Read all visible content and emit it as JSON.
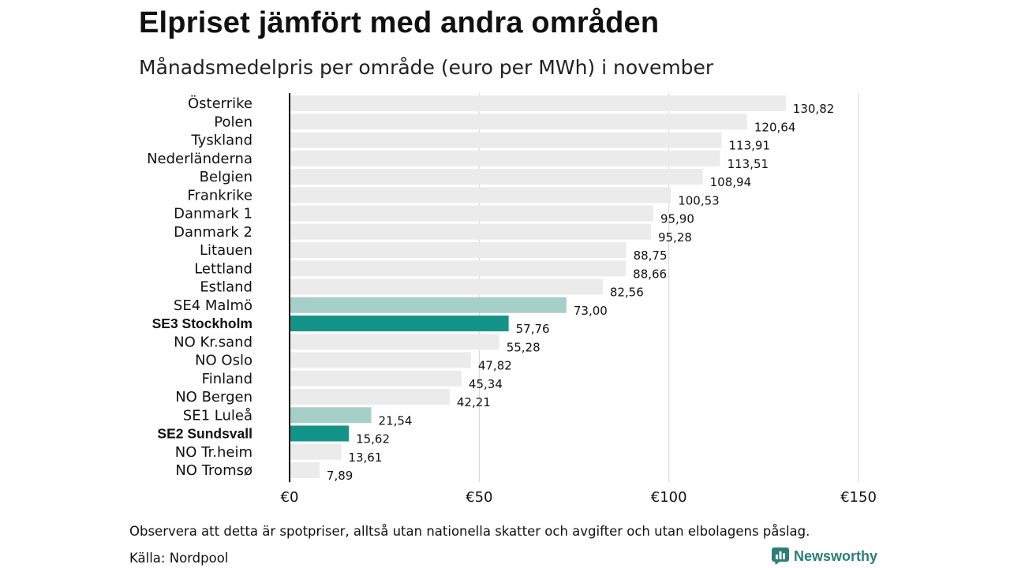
{
  "header": {
    "title": "Elpriset jämfört med andra områden",
    "subtitle": "Månadsmedelpris per område (euro per MWh) i november"
  },
  "footer": {
    "note": "Observera att detta är spotpriser, alltså utan nationella skatter och avgifter och utan elbolagens påslag.",
    "source": "Källa: Nordpool",
    "brand": "Newsworthy"
  },
  "colors": {
    "default_bar": "#ebebeb",
    "highlight_light": "#a6cfc8",
    "highlight_dark": "#149488",
    "axis": "#111111",
    "grid": "#d4d4d4",
    "brand": "#2a7f76"
  },
  "chart_data": {
    "type": "bar",
    "orientation": "horizontal",
    "xlim": [
      0,
      150
    ],
    "ticks": [
      0,
      50,
      100,
      150
    ],
    "tick_labels": [
      "€0",
      "€50",
      "€100",
      "€150"
    ],
    "grid": true,
    "categories": [
      "Österrike",
      "Polen",
      "Tyskland",
      "Nederländerna",
      "Belgien",
      "Frankrike",
      "Danmark  1",
      "Danmark  2",
      "Litauen",
      "Lettland",
      "Estland",
      "SE4  Malmö",
      "SE3 Stockholm",
      "NO Kr.sand",
      "NO Oslo",
      "Finland",
      "NO Bergen",
      "SE1  Luleå",
      "SE2 Sundsvall",
      "NO Tr.heim",
      "NO Tromsø"
    ],
    "values": [
      130.82,
      120.64,
      113.91,
      113.51,
      108.94,
      100.53,
      95.9,
      95.28,
      88.75,
      88.66,
      82.56,
      73.0,
      57.76,
      55.28,
      47.82,
      45.34,
      42.21,
      21.54,
      15.62,
      13.61,
      7.89
    ],
    "value_labels": [
      "130,82",
      "120,64",
      "113,91",
      "113,51",
      "108,94",
      "100,53",
      "95,90",
      "95,28",
      "88,75",
      "88,66",
      "82,56",
      "73,00",
      "57,76",
      "55,28",
      "47,82",
      "45,34",
      "42,21",
      "21,54",
      "15,62",
      "13,61",
      "7,89"
    ],
    "highlight": [
      "none",
      "none",
      "none",
      "none",
      "none",
      "none",
      "none",
      "none",
      "none",
      "none",
      "none",
      "light",
      "dark",
      "none",
      "none",
      "none",
      "none",
      "light",
      "dark",
      "none",
      "none"
    ],
    "bold_labels": [
      false,
      false,
      false,
      false,
      false,
      false,
      false,
      false,
      false,
      false,
      false,
      false,
      true,
      false,
      false,
      false,
      false,
      false,
      true,
      false,
      false
    ]
  }
}
